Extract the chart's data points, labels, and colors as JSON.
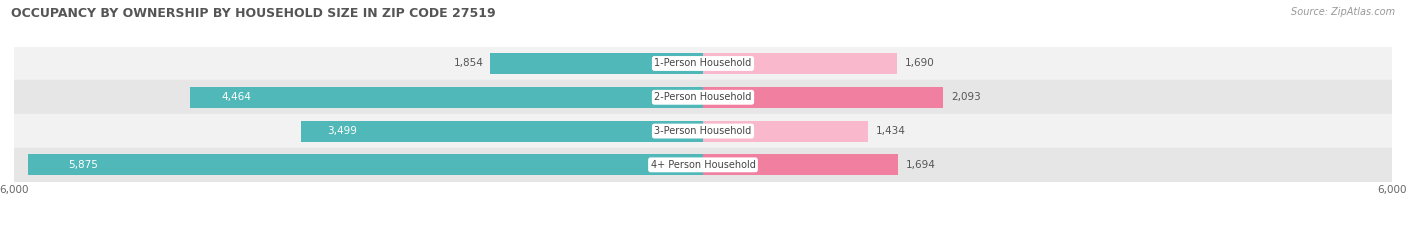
{
  "title": "OCCUPANCY BY OWNERSHIP BY HOUSEHOLD SIZE IN ZIP CODE 27519",
  "source": "Source: ZipAtlas.com",
  "categories": [
    "1-Person Household",
    "2-Person Household",
    "3-Person Household",
    "4+ Person Household"
  ],
  "owner_values": [
    1854,
    4464,
    3499,
    5875
  ],
  "renter_values": [
    1690,
    2093,
    1434,
    1694
  ],
  "owner_color": "#50b8b8",
  "renter_color": "#f07fa0",
  "renter_color_light": "#f9b8cc",
  "row_bg_colors": [
    "#f2f2f2",
    "#e6e6e6",
    "#f2f2f2",
    "#e6e6e6"
  ],
  "axis_max": 6000,
  "title_fontsize": 9,
  "source_fontsize": 7,
  "value_fontsize": 7.5,
  "category_fontsize": 7,
  "tick_fontsize": 7.5,
  "background_color": "#ffffff",
  "owner_label_white_threshold": 2000
}
